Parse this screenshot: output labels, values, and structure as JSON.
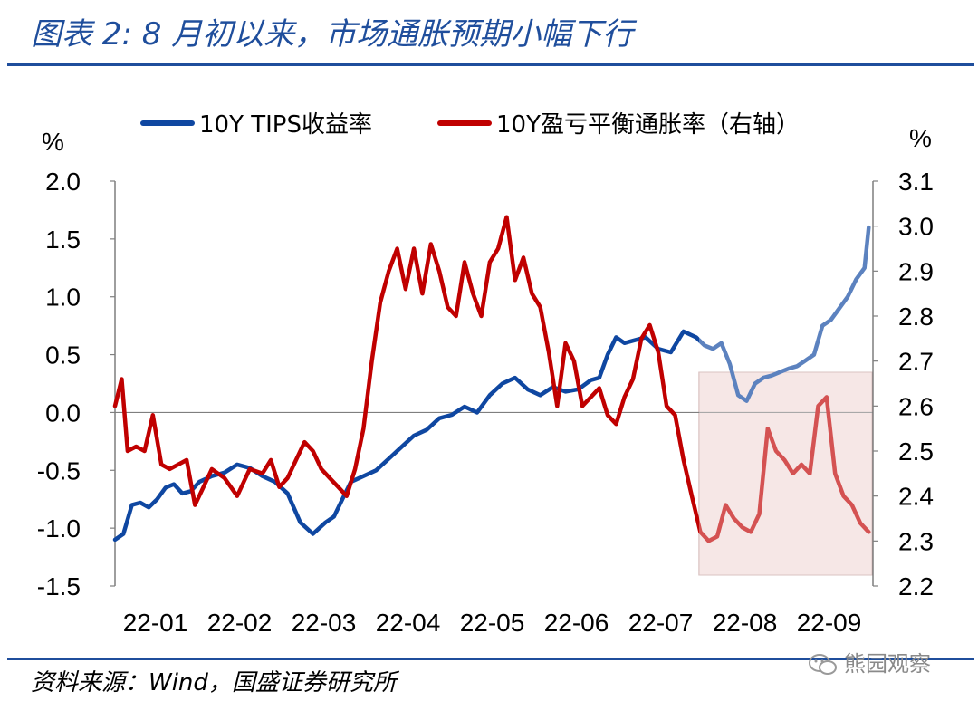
{
  "header": {
    "title": "图表 2:  8 月初以来，市场通胀预期小幅下行"
  },
  "footer": {
    "source": "资料来源：Wind，国盛证券研究所",
    "watermark": "熊园观察"
  },
  "chart_data": {
    "type": "line",
    "categories": [
      "22-01",
      "22-02",
      "22-03",
      "22-04",
      "22-05",
      "22-06",
      "22-07",
      "22-08",
      "22-09"
    ],
    "left_axis": {
      "unit": "%",
      "ylim": [
        -1.5,
        2.0
      ],
      "ticks": [
        "-1.5",
        "-1.0",
        "-0.5",
        "0.0",
        "0.5",
        "1.0",
        "1.5",
        "2.0"
      ]
    },
    "right_axis": {
      "unit": "%",
      "ylim": [
        2.2,
        3.1
      ],
      "ticks": [
        "2.2",
        "2.3",
        "2.4",
        "2.5",
        "2.6",
        "2.7",
        "2.8",
        "2.9",
        "3.0",
        "3.1"
      ]
    },
    "highlight": {
      "from": "22-08 (early Aug)",
      "to": "22-09 (end)",
      "color": "#f2dcdb"
    },
    "series": [
      {
        "name": "10Y TIPS收益率",
        "axis": "left",
        "color": "#0f47a1",
        "x": [
          0.0,
          0.1,
          0.2,
          0.3,
          0.4,
          0.5,
          0.6,
          0.7,
          0.8,
          0.9,
          1.0,
          1.15,
          1.3,
          1.45,
          1.6,
          1.75,
          1.9,
          2.05,
          2.2,
          2.35,
          2.5,
          2.6,
          2.7,
          2.8,
          2.95,
          3.1,
          3.25,
          3.4,
          3.55,
          3.7,
          3.85,
          4.0,
          4.15,
          4.3,
          4.45,
          4.6,
          4.75,
          4.9,
          5.05,
          5.2,
          5.35,
          5.5,
          5.65,
          5.75,
          5.85,
          5.95,
          6.05,
          6.15,
          6.3,
          6.45,
          6.6,
          6.75,
          6.9,
          7.0,
          7.1,
          7.2,
          7.3,
          7.4,
          7.5,
          7.6,
          7.7,
          7.8,
          7.9,
          8.0,
          8.1,
          8.2,
          8.3,
          8.4,
          8.5,
          8.6,
          8.7,
          8.8,
          8.9,
          8.95
        ],
        "values": [
          -1.1,
          -1.05,
          -0.8,
          -0.78,
          -0.82,
          -0.75,
          -0.65,
          -0.62,
          -0.7,
          -0.68,
          -0.6,
          -0.55,
          -0.52,
          -0.45,
          -0.48,
          -0.55,
          -0.6,
          -0.7,
          -0.95,
          -1.05,
          -0.95,
          -0.9,
          -0.75,
          -0.6,
          -0.55,
          -0.5,
          -0.4,
          -0.3,
          -0.2,
          -0.15,
          -0.05,
          -0.02,
          0.05,
          0.0,
          0.15,
          0.25,
          0.3,
          0.2,
          0.15,
          0.22,
          0.18,
          0.2,
          0.28,
          0.3,
          0.5,
          0.65,
          0.6,
          0.62,
          0.65,
          0.55,
          0.52,
          0.7,
          0.65,
          0.58,
          0.55,
          0.6,
          0.42,
          0.15,
          0.1,
          0.25,
          0.3,
          0.32,
          0.35,
          0.38,
          0.4,
          0.45,
          0.5,
          0.75,
          0.8,
          0.9,
          1.0,
          1.15,
          1.25,
          1.6
        ]
      },
      {
        "name": "10Y盈亏平衡通胀率（右轴）",
        "axis": "right",
        "color": "#c00000",
        "x": [
          0.0,
          0.08,
          0.15,
          0.25,
          0.35,
          0.45,
          0.55,
          0.65,
          0.75,
          0.85,
          0.95,
          1.05,
          1.15,
          1.3,
          1.45,
          1.6,
          1.75,
          1.85,
          1.95,
          2.05,
          2.15,
          2.25,
          2.35,
          2.45,
          2.55,
          2.65,
          2.75,
          2.85,
          2.95,
          3.05,
          3.15,
          3.25,
          3.35,
          3.45,
          3.55,
          3.65,
          3.75,
          3.85,
          3.95,
          4.05,
          4.15,
          4.25,
          4.35,
          4.45,
          4.55,
          4.65,
          4.75,
          4.85,
          4.95,
          5.05,
          5.15,
          5.25,
          5.35,
          5.45,
          5.55,
          5.65,
          5.75,
          5.85,
          5.95,
          6.05,
          6.15,
          6.25,
          6.35,
          6.45,
          6.55,
          6.65,
          6.75,
          6.85,
          6.95,
          7.05,
          7.15,
          7.25,
          7.35,
          7.45,
          7.55,
          7.65,
          7.75,
          7.85,
          7.95,
          8.05,
          8.15,
          8.25,
          8.35,
          8.45,
          8.55,
          8.65,
          8.75,
          8.85,
          8.95
        ],
        "values": [
          2.6,
          2.66,
          2.5,
          2.51,
          2.5,
          2.58,
          2.47,
          2.46,
          2.47,
          2.48,
          2.38,
          2.42,
          2.46,
          2.44,
          2.4,
          2.46,
          2.45,
          2.48,
          2.42,
          2.44,
          2.48,
          2.52,
          2.5,
          2.46,
          2.44,
          2.42,
          2.4,
          2.46,
          2.55,
          2.7,
          2.83,
          2.9,
          2.95,
          2.86,
          2.95,
          2.85,
          2.96,
          2.9,
          2.82,
          2.8,
          2.92,
          2.85,
          2.8,
          2.92,
          2.95,
          3.02,
          2.88,
          2.93,
          2.85,
          2.82,
          2.72,
          2.6,
          2.74,
          2.7,
          2.6,
          2.62,
          2.64,
          2.58,
          2.56,
          2.62,
          2.66,
          2.75,
          2.78,
          2.72,
          2.6,
          2.58,
          2.48,
          2.4,
          2.32,
          2.3,
          2.31,
          2.38,
          2.35,
          2.33,
          2.32,
          2.36,
          2.55,
          2.5,
          2.48,
          2.45,
          2.47,
          2.45,
          2.6,
          2.62,
          2.45,
          2.4,
          2.38,
          2.34,
          2.32
        ]
      }
    ]
  }
}
